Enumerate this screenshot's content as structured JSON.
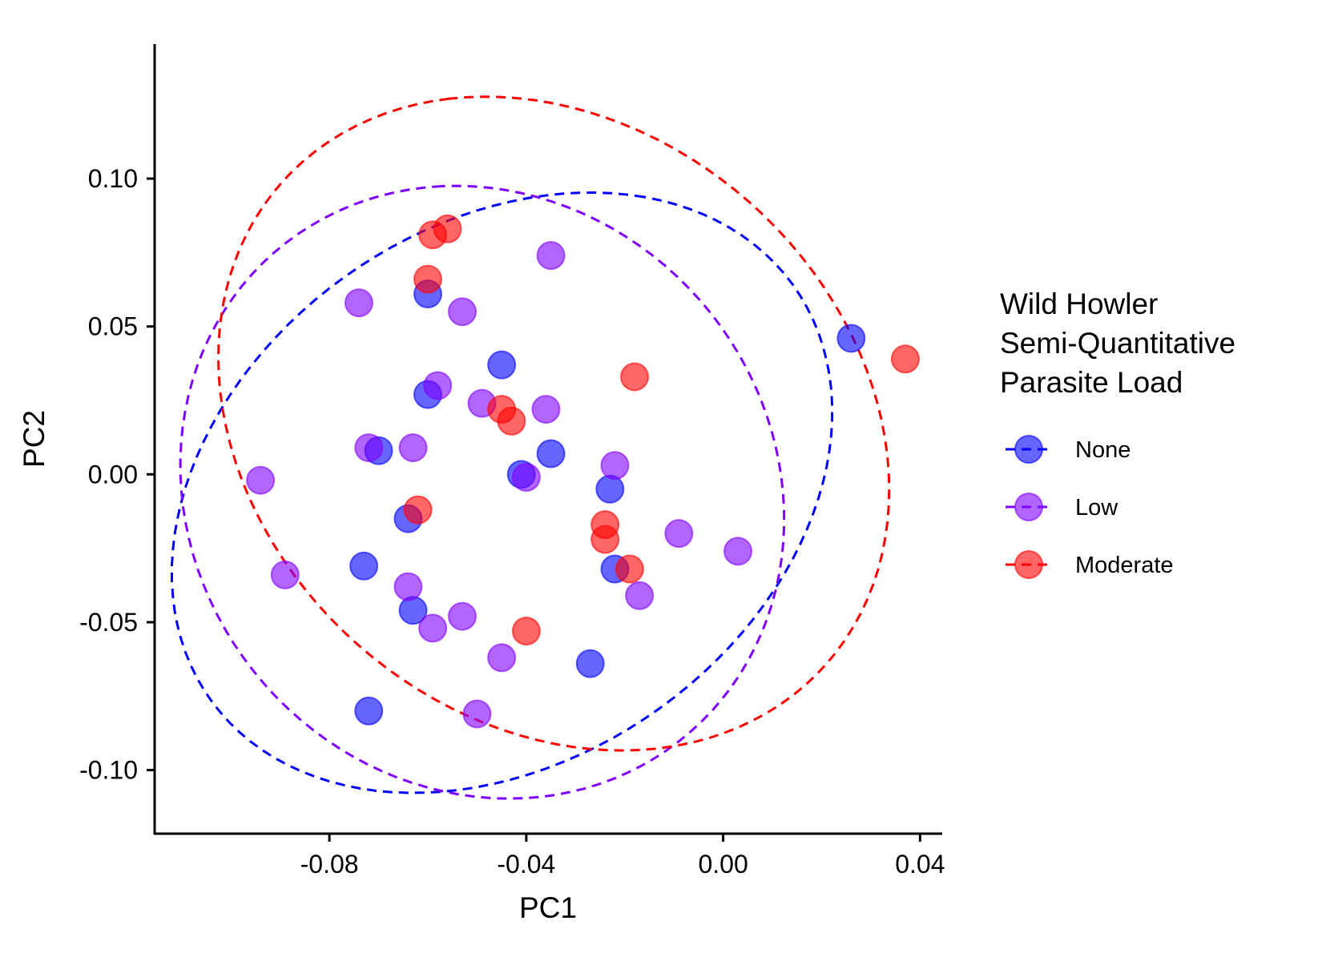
{
  "chart_data": {
    "type": "scatter",
    "xlabel": "PC1",
    "ylabel": "PC2",
    "xlim": [
      -0.1155,
      0.0445
    ],
    "ylim": [
      -0.1215,
      0.1455
    ],
    "x_ticks": [
      -0.08,
      -0.04,
      0.0,
      0.04
    ],
    "x_tick_labels": [
      "-0.08",
      "-0.04",
      "0.00",
      "0.04"
    ],
    "y_ticks": [
      -0.1,
      -0.05,
      0.0,
      0.05,
      0.1
    ],
    "y_tick_labels": [
      "-0.10",
      "-0.05",
      "0.00",
      "0.05",
      "0.10"
    ],
    "grid": false,
    "legend": {
      "title_lines": [
        "Wild Howler",
        "Semi-Quantitative",
        "Parasite Load"
      ],
      "position": "right"
    },
    "series": [
      {
        "name": "None",
        "color": "#0000ff",
        "ellipse": true,
        "points": [
          [
            0.026,
            0.046
          ],
          [
            -0.06,
            0.061
          ],
          [
            -0.045,
            0.037
          ],
          [
            -0.06,
            0.027
          ],
          [
            -0.07,
            0.008
          ],
          [
            -0.035,
            0.007
          ],
          [
            -0.041,
            0.0
          ],
          [
            -0.023,
            -0.005
          ],
          [
            -0.064,
            -0.015
          ],
          [
            -0.073,
            -0.031
          ],
          [
            -0.022,
            -0.032
          ],
          [
            -0.063,
            -0.046
          ],
          [
            -0.027,
            -0.064
          ],
          [
            -0.072,
            -0.08
          ]
        ]
      },
      {
        "name": "Low",
        "color": "#8000ff",
        "ellipse": true,
        "points": [
          [
            -0.035,
            0.074
          ],
          [
            -0.074,
            0.058
          ],
          [
            -0.053,
            0.055
          ],
          [
            -0.058,
            0.03
          ],
          [
            -0.049,
            0.024
          ],
          [
            -0.036,
            0.022
          ],
          [
            -0.072,
            0.009
          ],
          [
            -0.063,
            0.009
          ],
          [
            -0.022,
            0.003
          ],
          [
            -0.04,
            -0.001
          ],
          [
            -0.094,
            -0.002
          ],
          [
            -0.009,
            -0.02
          ],
          [
            0.003,
            -0.026
          ],
          [
            -0.089,
            -0.034
          ],
          [
            -0.017,
            -0.041
          ],
          [
            -0.064,
            -0.038
          ],
          [
            -0.053,
            -0.048
          ],
          [
            -0.059,
            -0.052
          ],
          [
            -0.045,
            -0.062
          ],
          [
            -0.05,
            -0.081
          ]
        ]
      },
      {
        "name": "Moderate",
        "color": "#ff0000",
        "ellipse": true,
        "points": [
          [
            -0.056,
            0.083
          ],
          [
            -0.059,
            0.081
          ],
          [
            -0.06,
            0.066
          ],
          [
            0.037,
            0.039
          ],
          [
            -0.018,
            0.033
          ],
          [
            -0.045,
            0.022
          ],
          [
            -0.043,
            0.018
          ],
          [
            -0.062,
            -0.012
          ],
          [
            -0.024,
            -0.017
          ],
          [
            -0.024,
            -0.022
          ],
          [
            -0.019,
            -0.032
          ],
          [
            -0.04,
            -0.053
          ]
        ]
      }
    ]
  }
}
